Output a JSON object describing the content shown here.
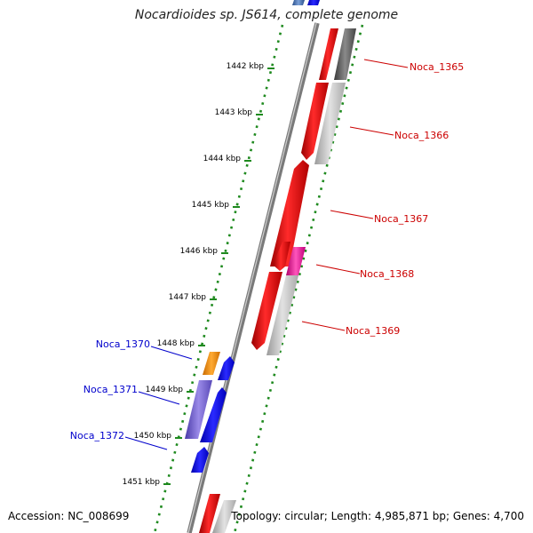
{
  "title": "Nocardioides sp. JS614, complete genome",
  "accession": "Accession: NC_008699",
  "topology": "Topology: circular; Length: 4,985,871 bp; Genes: 4,700",
  "colors": {
    "backbone": "#7a7a7a",
    "ruler": "#1f8a1f",
    "label_red": "#cc0000",
    "label_blue": "#0000cc"
  },
  "kbp_ticks": [
    "1442 kbp",
    "1443 kbp",
    "1444 kbp",
    "1445 kbp",
    "1446 kbp",
    "1447 kbp",
    "1448 kbp",
    "1449 kbp",
    "1450 kbp",
    "1451 kbp"
  ],
  "gene_labels": {
    "right": [
      "Noca_1365",
      "Noca_1366",
      "Noca_1367",
      "Noca_1368",
      "Noca_1369"
    ],
    "left": [
      "Noca_1370",
      "Noca_1371",
      "Noca_1372"
    ]
  }
}
